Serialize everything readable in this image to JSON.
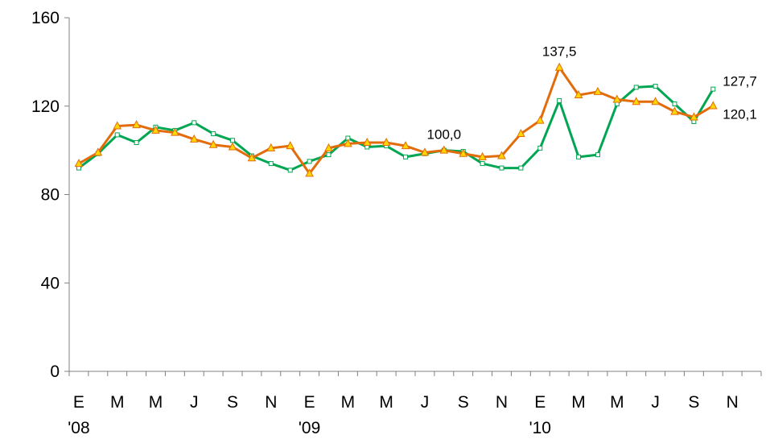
{
  "chart_data": {
    "type": "line",
    "title": "",
    "xlabel": "",
    "ylabel": "",
    "ylim": [
      0,
      160
    ],
    "y_ticks": [
      "0",
      "40",
      "80",
      "120",
      "160"
    ],
    "x_ticks": [
      {
        "index": 0,
        "month": "E",
        "year": "'08"
      },
      {
        "index": 2,
        "month": "M",
        "year": ""
      },
      {
        "index": 4,
        "month": "M",
        "year": ""
      },
      {
        "index": 6,
        "month": "J",
        "year": ""
      },
      {
        "index": 8,
        "month": "S",
        "year": ""
      },
      {
        "index": 10,
        "month": "N",
        "year": ""
      },
      {
        "index": 12,
        "month": "E",
        "year": "'09"
      },
      {
        "index": 14,
        "month": "M",
        "year": ""
      },
      {
        "index": 16,
        "month": "M",
        "year": ""
      },
      {
        "index": 18,
        "month": "J",
        "year": ""
      },
      {
        "index": 20,
        "month": "S",
        "year": ""
      },
      {
        "index": 22,
        "month": "N",
        "year": ""
      },
      {
        "index": 24,
        "month": "E",
        "year": "'10"
      },
      {
        "index": 26,
        "month": "M",
        "year": ""
      },
      {
        "index": 28,
        "month": "M",
        "year": ""
      },
      {
        "index": 30,
        "month": "J",
        "year": ""
      },
      {
        "index": 32,
        "month": "S",
        "year": ""
      },
      {
        "index": 34,
        "month": "N",
        "year": ""
      }
    ],
    "category_count": 36,
    "grid": false,
    "legend": "none",
    "series": [
      {
        "color": "#00A651",
        "marker": "square",
        "values": [
          92,
          98.5,
          107,
          103.5,
          110.5,
          109,
          112.5,
          107.5,
          104.5,
          97.5,
          94,
          91,
          95,
          98,
          105.5,
          101.5,
          102,
          97,
          98.5,
          100,
          99.5,
          94,
          92,
          92,
          101,
          122.5,
          97,
          98,
          121,
          128.5,
          129,
          121,
          113,
          127.7
        ]
      },
      {
        "color": "#E36C0A",
        "marker": "triangle",
        "marker_fill": "#FFD700",
        "values": [
          94,
          99,
          111,
          111.5,
          109,
          108,
          105,
          102.5,
          101.5,
          96.5,
          101,
          102,
          89.5,
          101,
          103,
          103.5,
          103.5,
          102,
          99,
          100,
          98.5,
          97,
          97.5,
          107.5,
          113.5,
          137.5,
          125,
          126.5,
          123,
          122,
          122,
          117.5,
          115,
          120.1
        ]
      }
    ],
    "annotations": [
      {
        "text": "100,0",
        "series": 1,
        "index": 19
      },
      {
        "text": "137,5",
        "series": 1,
        "index": 25
      },
      {
        "text": "127,7",
        "series": 0,
        "index": 33
      },
      {
        "text": "120,1",
        "series": 1,
        "index": 33
      }
    ]
  }
}
